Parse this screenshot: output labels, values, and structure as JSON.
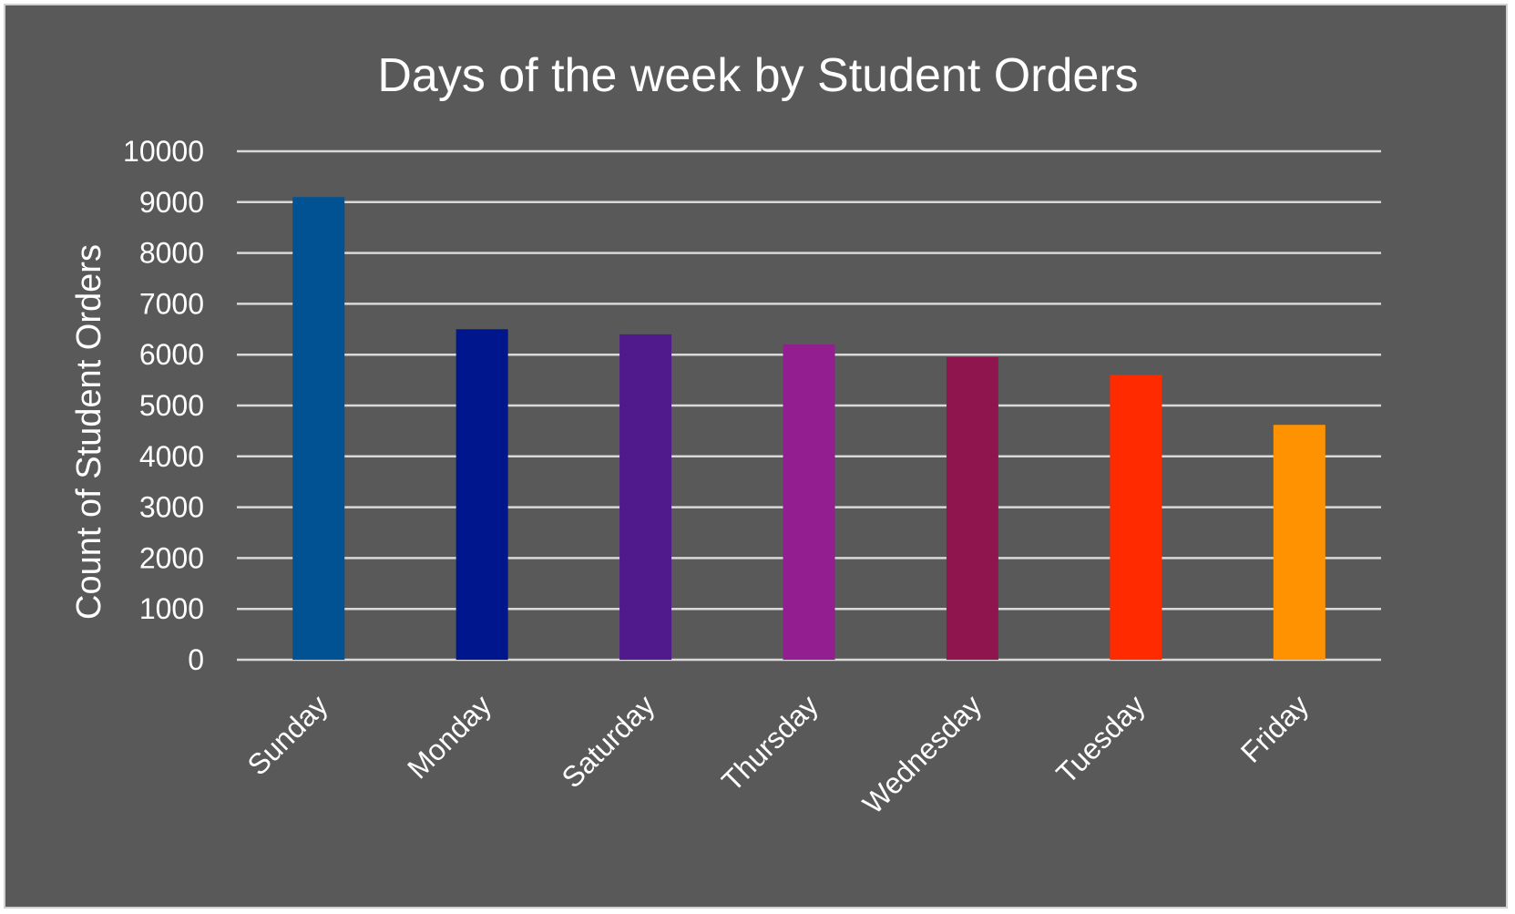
{
  "chart_data": {
    "type": "bar",
    "title": "Days of the week by Student Orders",
    "xlabel": "",
    "ylabel": "Count of Student Orders",
    "ylim": [
      0,
      10000
    ],
    "yticks": [
      0,
      1000,
      2000,
      3000,
      4000,
      5000,
      6000,
      7000,
      8000,
      9000,
      10000
    ],
    "grid": true,
    "legend": "none",
    "categories": [
      "Sunday",
      "Monday",
      "Saturday",
      "Thursday",
      "Wednesday",
      "Tuesday",
      "Friday"
    ],
    "values": [
      9100,
      6500,
      6400,
      6200,
      5950,
      5600,
      4620
    ],
    "bar_colors": [
      "#005293",
      "#00168c",
      "#501a8c",
      "#921e8f",
      "#8f154f",
      "#ff2a00",
      "#ff9200"
    ],
    "background_color": "#595959",
    "text_color": "#ffffff",
    "grid_color": "#d9d9d9"
  }
}
